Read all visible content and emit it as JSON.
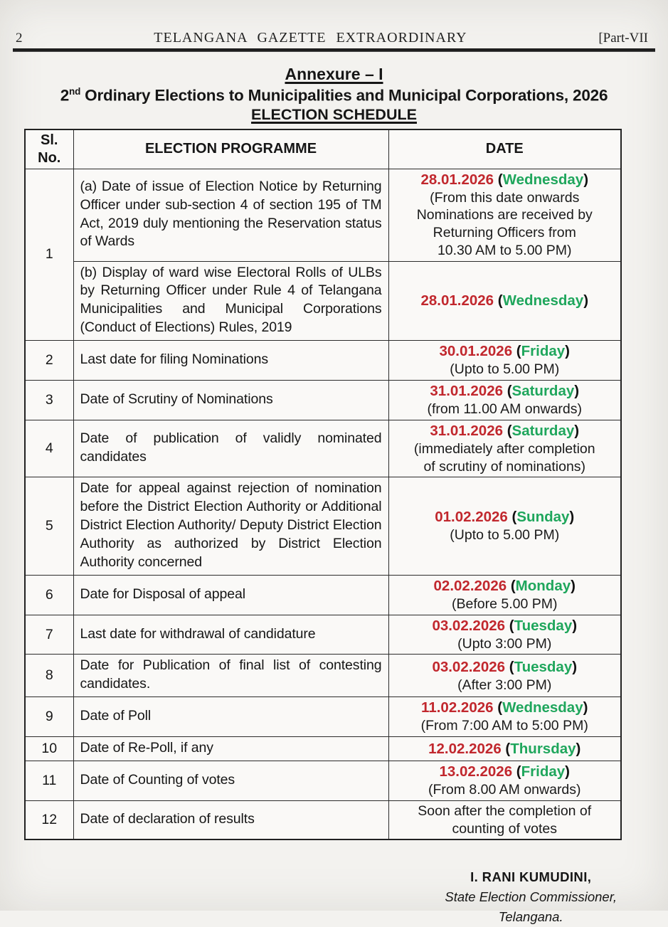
{
  "header": {
    "page_number": "2",
    "masthead": "TELANGANA GAZETTE EXTRAORDINARY",
    "part_label": "[Part-VII"
  },
  "titles": {
    "annexure": "Annexure – I",
    "main_prefix": "2",
    "main_sup": "nd",
    "main_rest": " Ordinary Elections to Municipalities and Municipal Corporations, 2026",
    "schedule": "ELECTION SCHEDULE"
  },
  "colors": {
    "date_red": "#c1272d",
    "day_green": "#1fa65c"
  },
  "table": {
    "headers": {
      "sl1": "Sl.",
      "sl2": "No.",
      "programme": "ELECTION PROGRAMME",
      "date": "DATE"
    },
    "rows": [
      {
        "sl": "1",
        "sub": [
          {
            "programme": "(a) Date of issue of Election Notice by Returning Officer under sub-section 4 of section 195 of TM Act, 2019 duly mentioning the Reservation status of Wards",
            "date": {
              "date": "28.01.2026",
              "day": "Wednesday",
              "notes": [
                "(From this date onwards",
                "Nominations are received by",
                "Returning Officers from",
                "10.30 AM to 5.00 PM)"
              ]
            }
          },
          {
            "programme": "(b) Display of ward wise Electoral Rolls of ULBs by Returning Officer under Rule 4 of Telangana Municipalities and Municipal Corporations (Conduct of Elections) Rules, 2019",
            "date": {
              "date": "28.01.2026",
              "day": "Wednesday",
              "notes": []
            }
          }
        ]
      },
      {
        "sl": "2",
        "programme": "Last date for filing Nominations",
        "date": {
          "date": "30.01.2026",
          "day": "Friday",
          "notes": [
            "(Upto to 5.00 PM)"
          ]
        }
      },
      {
        "sl": "3",
        "programme": "Date of Scrutiny of Nominations",
        "date": {
          "date": "31.01.2026",
          "day": "Saturday",
          "notes": [
            "(from 11.00 AM onwards)"
          ]
        }
      },
      {
        "sl": "4",
        "programme": "Date of publication of validly nominated candidates",
        "date": {
          "date": "31.01.2026",
          "day": "Saturday",
          "notes": [
            "(immediately after completion",
            "of scrutiny of nominations)"
          ]
        }
      },
      {
        "sl": "5",
        "programme": "Date for appeal against rejection of nomination before the District Election Authority or Additional District Election Authority/ Deputy District Election Authority as authorized by District Election Authority concerned",
        "date": {
          "date": "01.02.2026",
          "day": "Sunday",
          "notes": [
            "(Upto to 5.00 PM)"
          ]
        }
      },
      {
        "sl": "6",
        "programme": "Date for Disposal of appeal",
        "date": {
          "date": "02.02.2026",
          "day": "Monday",
          "notes": [
            "(Before  5.00 PM)"
          ]
        }
      },
      {
        "sl": "7",
        "programme": "Last date for withdrawal of candidature",
        "date": {
          "date": "03.02.2026",
          "day": "Tuesday",
          "notes": [
            "(Upto 3:00 PM)"
          ]
        }
      },
      {
        "sl": "8",
        "programme": "Date for Publication of final list of contesting candidates.",
        "date": {
          "date": "03.02.2026",
          "day": "Tuesday",
          "notes": [
            "(After 3:00 PM)"
          ]
        }
      },
      {
        "sl": "9",
        "programme": "Date of Poll",
        "date": {
          "date": "11.02.2026",
          "day": "Wednesday",
          "notes": [
            "(From 7:00 AM to 5:00 PM)"
          ]
        }
      },
      {
        "sl": "10",
        "programme": "Date of Re-Poll, if any",
        "date": {
          "date": "12.02.2026",
          "day": "Thursday",
          "notes": []
        }
      },
      {
        "sl": "11",
        "programme": "Date of Counting of votes",
        "date": {
          "date": "13.02.2026",
          "day": "Friday",
          "notes": [
            "(From 8.00 AM onwards)"
          ]
        }
      },
      {
        "sl": "12",
        "programme": "Date of declaration of results",
        "date": {
          "notes": [
            "Soon after the completion of",
            "counting of votes"
          ]
        }
      }
    ]
  },
  "signature": {
    "name": "I. RANI KUMUDINI,",
    "role": "State Election Commissioner,",
    "place": "Telangana."
  }
}
